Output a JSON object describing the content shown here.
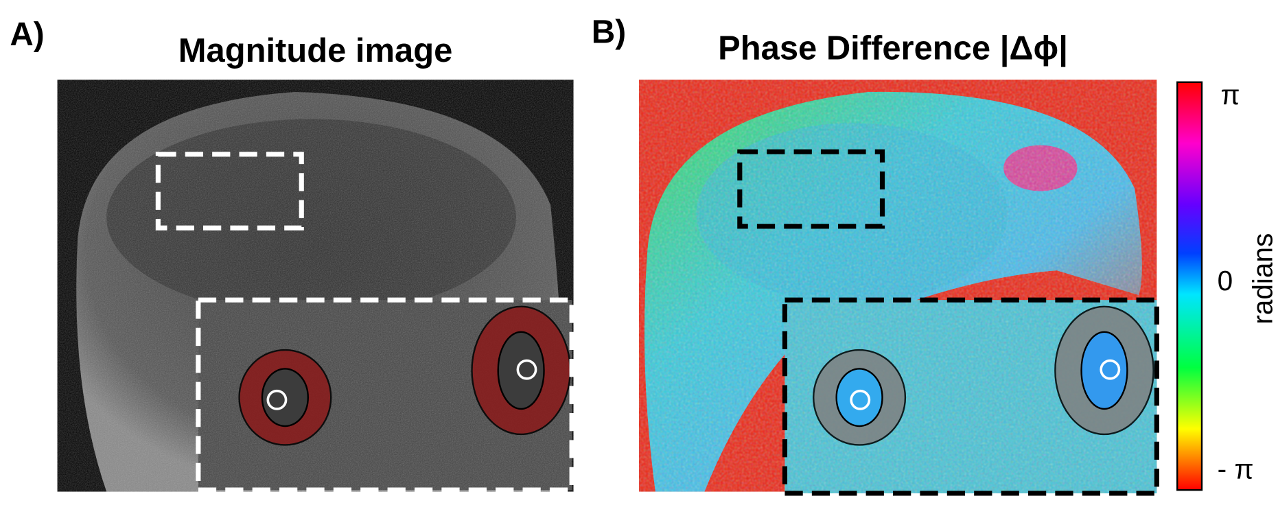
{
  "panels": [
    {
      "label": "A)",
      "title": "Magnitude image"
    },
    {
      "label": "B)",
      "title": "Phase Difference |Δϕ|"
    }
  ],
  "colorbar": {
    "title": "radians",
    "tick_labels": [
      "π",
      "0",
      "- π"
    ]
  }
}
